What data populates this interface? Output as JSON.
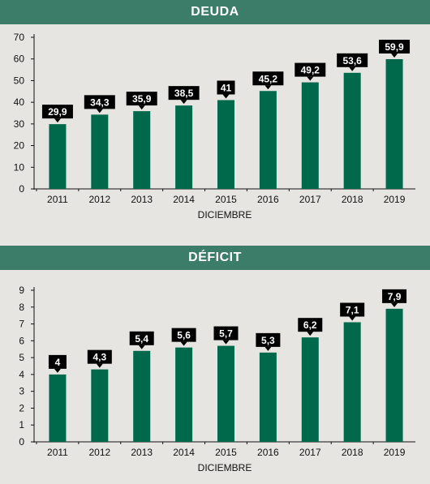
{
  "colors": {
    "bar": "#00684b",
    "header": "#3c7d69",
    "label_bg": "#000000",
    "background": "#e6e5e1"
  },
  "chart_data": [
    {
      "type": "bar",
      "title": "DEUDA",
      "xlabel": "DICIEMBRE",
      "ylabel": "",
      "categories": [
        "2011",
        "2012",
        "2013",
        "2014",
        "2015",
        "2016",
        "2017",
        "2018",
        "2019"
      ],
      "values": [
        29.9,
        34.3,
        35.9,
        38.5,
        41,
        45.2,
        49.2,
        53.6,
        59.9
      ],
      "value_labels": [
        "29,9",
        "34,3",
        "35,9",
        "38,5",
        "41",
        "45,2",
        "49,2",
        "53,6",
        "59,9"
      ],
      "yticks": [
        "0",
        "10",
        "20",
        "30",
        "40",
        "50",
        "60",
        "70"
      ],
      "ylim": [
        0,
        70
      ],
      "grid": false,
      "legend": "none"
    },
    {
      "type": "bar",
      "title": "DÉFICIT",
      "xlabel": "DICIEMBRE",
      "ylabel": "",
      "categories": [
        "2011",
        "2012",
        "2013",
        "2014",
        "2015",
        "2016",
        "2017",
        "2018",
        "2019"
      ],
      "values": [
        4,
        4.3,
        5.4,
        5.6,
        5.7,
        5.3,
        6.2,
        7.1,
        7.9
      ],
      "value_labels": [
        "4",
        "4,3",
        "5,4",
        "5,6",
        "5,7",
        "5,3",
        "6,2",
        "7,1",
        "7,9"
      ],
      "yticks": [
        "0",
        "1",
        "2",
        "3",
        "4",
        "5",
        "6",
        "7",
        "8",
        "9"
      ],
      "ylim": [
        0,
        9
      ],
      "grid": false,
      "legend": "none"
    }
  ]
}
